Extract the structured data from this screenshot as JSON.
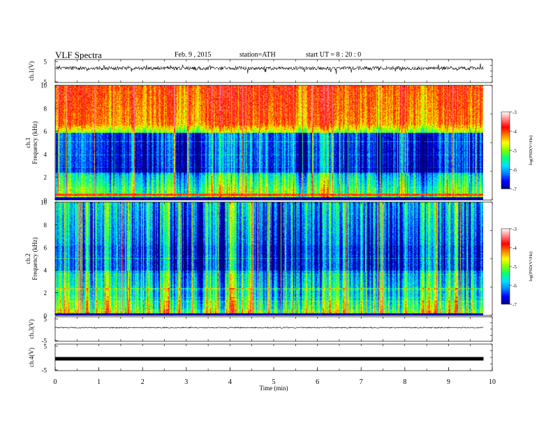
{
  "header": {
    "title": "VLF  Spectra",
    "date": "Feb. 9  , 2015",
    "station": "station=ATH",
    "start": "start  UT  =   8  : 20 : 0"
  },
  "colors": {
    "colormap": [
      "#000080",
      "#0000ff",
      "#0080ff",
      "#00e0ff",
      "#00ff80",
      "#80ff00",
      "#ffff00",
      "#ff8000",
      "#ff0000",
      "#ff8080",
      "#ffffff"
    ]
  },
  "chart_data": [
    {
      "type": "line",
      "panel": "ch1-waveform",
      "ylabel": "ch.1(V)",
      "ylim": [
        -5,
        5
      ],
      "yticks": [
        "5",
        "-5"
      ],
      "xlim": [
        0,
        10
      ],
      "baseline": 0
    },
    {
      "type": "heatmap",
      "panel": "ch1-spectrogram",
      "ylabel": "ch.1\nFrequency (kHz)",
      "ylim": [
        0,
        10
      ],
      "yticks": [
        "10",
        "8",
        "6",
        "4",
        "2",
        "0"
      ],
      "xlim": [
        0,
        9.8
      ],
      "colorbar": {
        "label": "log(PSD(V²/Hz)",
        "range": [
          -7,
          -3
        ],
        "ticks": [
          "-3",
          "-4",
          "-5",
          "-6",
          "-7"
        ]
      }
    },
    {
      "type": "heatmap",
      "panel": "ch2-spectrogram",
      "ylabel": "ch.2\nFrequency (kHz)",
      "ylim": [
        0,
        10
      ],
      "yticks": [
        "10",
        "8",
        "6",
        "4",
        "2",
        "0"
      ],
      "xlim": [
        0,
        9.8
      ],
      "colorbar": {
        "label": "log(PSD(V²/Hz)",
        "range": [
          -7,
          -3
        ],
        "ticks": [
          "-3",
          "-4",
          "-5",
          "-6",
          "-7"
        ]
      }
    },
    {
      "type": "line",
      "panel": "ch3-waveform",
      "ylabel": "ch.3(V)",
      "ylim": [
        -5,
        5
      ],
      "yticks": [
        "5",
        "-5"
      ],
      "baseline": 0
    },
    {
      "type": "line",
      "panel": "ch4-waveform",
      "ylabel": "ch.4(V)",
      "ylim": [
        -5,
        5
      ],
      "yticks": [
        "5",
        "-5"
      ],
      "baseline": 0
    }
  ],
  "xaxis": {
    "label": "Time  (min)",
    "range": [
      0,
      10
    ],
    "ticks": [
      "0",
      "1",
      "2",
      "3",
      "4",
      "5",
      "6",
      "7",
      "8",
      "9",
      "10"
    ]
  }
}
